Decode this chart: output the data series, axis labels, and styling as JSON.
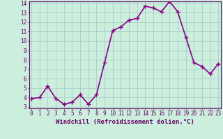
{
  "x": [
    0,
    1,
    2,
    3,
    4,
    5,
    6,
    7,
    8,
    9,
    10,
    11,
    12,
    13,
    14,
    15,
    16,
    17,
    18,
    19,
    20,
    21,
    22,
    23
  ],
  "y": [
    3.9,
    4.0,
    5.2,
    3.9,
    3.3,
    3.5,
    4.3,
    3.3,
    4.3,
    7.7,
    11.1,
    11.5,
    12.2,
    12.4,
    13.7,
    13.5,
    13.1,
    14.2,
    13.1,
    10.4,
    7.7,
    7.3,
    6.5,
    7.6
  ],
  "line_color": "#880088",
  "marker": "+",
  "marker_size": 4,
  "background_color": "#cceedd",
  "grid_color": "#aacccc",
  "xlabel": "Windchill (Refroidissement éolien,°C)",
  "ylim_min": 3,
  "ylim_max": 14,
  "xlim_min": 0,
  "xlim_max": 23,
  "yticks": [
    3,
    4,
    5,
    6,
    7,
    8,
    9,
    10,
    11,
    12,
    13,
    14
  ],
  "xticks": [
    0,
    1,
    2,
    3,
    4,
    5,
    6,
    7,
    8,
    9,
    10,
    11,
    12,
    13,
    14,
    15,
    16,
    17,
    18,
    19,
    20,
    21,
    22,
    23
  ],
  "tick_color": "#660066",
  "label_color": "#660066",
  "font_family": "monospace",
  "xlabel_fontsize": 6.5,
  "tick_fontsize": 5.5,
  "line_width": 1.2,
  "marker_linewidth": 1.0
}
